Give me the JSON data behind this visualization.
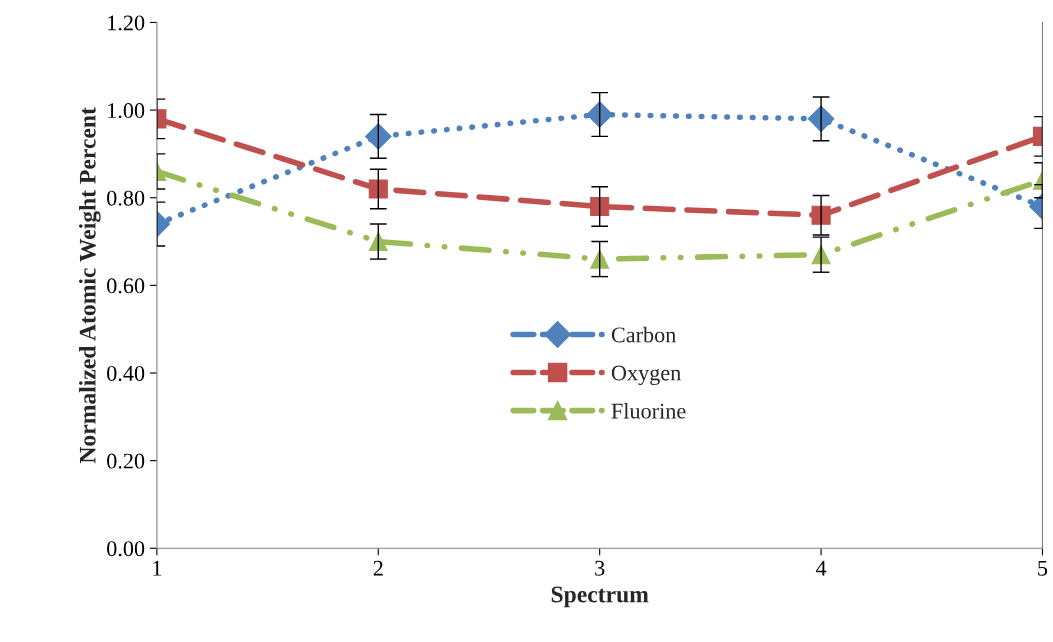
{
  "chart_data": {
    "type": "line",
    "xlabel": "Spectrum",
    "ylabel": "Normalized Atomic Weight Percent",
    "x": [
      1,
      2,
      3,
      4,
      5
    ],
    "xlim": [
      1,
      5
    ],
    "xticks": [
      1,
      2,
      3,
      4,
      5
    ],
    "ylim": [
      0,
      1.2
    ],
    "yticks": [
      {
        "value": 0,
        "label": "0.00"
      },
      {
        "value": 0.2,
        "label": "0.20"
      },
      {
        "value": 0.4,
        "label": "0.40"
      },
      {
        "value": 0.6,
        "label": "0.60"
      },
      {
        "value": 0.8,
        "label": "0.80"
      },
      {
        "value": 1.0,
        "label": "1.00"
      },
      {
        "value": 1.2,
        "label": "1.20"
      }
    ],
    "grid": false,
    "legend": "bottom",
    "series": [
      {
        "name": "Carbon",
        "color": "#4f81bd",
        "marker": "diamond",
        "line_style": "dotted",
        "values": [
          0.74,
          0.94,
          0.99,
          0.98,
          0.78
        ],
        "errors": [
          0.05,
          0.05,
          0.05,
          0.05,
          0.05
        ]
      },
      {
        "name": "Oxygen",
        "color": "#c0504d",
        "marker": "square",
        "line_style": "dashed",
        "values": [
          0.98,
          0.82,
          0.78,
          0.76,
          0.94
        ],
        "errors": [
          0.045,
          0.045,
          0.045,
          0.045,
          0.045
        ]
      },
      {
        "name": "Fluorine",
        "color": "#9bbb59",
        "marker": "triangle",
        "line_style": "dashdot",
        "values": [
          0.86,
          0.7,
          0.66,
          0.67,
          0.84
        ],
        "errors": [
          0.04,
          0.04,
          0.04,
          0.04,
          0.04
        ]
      }
    ]
  }
}
